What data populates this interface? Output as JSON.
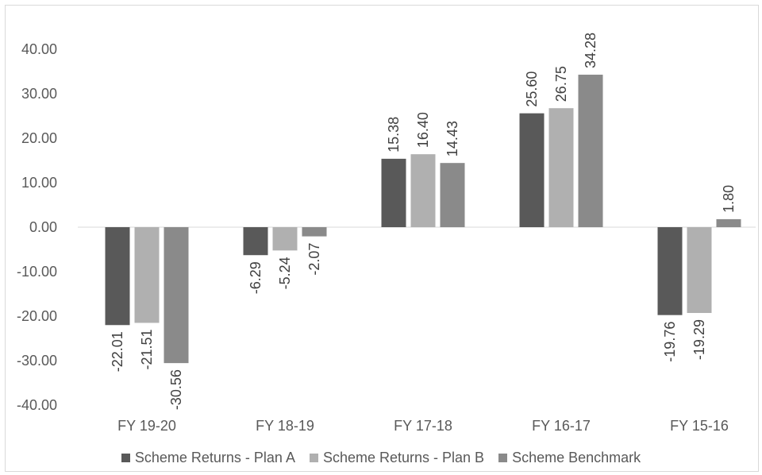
{
  "chart_data": {
    "type": "bar",
    "title": "",
    "xlabel": "",
    "ylabel": "",
    "categories": [
      "FY 19-20",
      "FY 18-19",
      "FY 17-18",
      "FY 16-17",
      "FY 15-16"
    ],
    "ylim": [
      -40,
      40
    ],
    "yticks": [
      40,
      30,
      20,
      10,
      0,
      -10,
      -20,
      -30,
      -40
    ],
    "ytick_labels": [
      "40.00",
      "30.00",
      "20.00",
      "10.00",
      "0.00",
      "-10.00",
      "-20.00",
      "-30.00",
      "-40.00"
    ],
    "grid": false,
    "legend_position": "bottom",
    "series": [
      {
        "name": "Scheme Returns - Plan A",
        "color": "#595959",
        "values": [
          -22.01,
          -6.29,
          15.38,
          25.6,
          -19.76
        ],
        "labels": [
          "-22.01",
          "-6.29",
          "15.38",
          "25.60",
          "-19.76"
        ]
      },
      {
        "name": "Scheme Returns  - Plan B",
        "color": "#b0b0b0",
        "values": [
          -21.51,
          -5.24,
          16.4,
          26.75,
          -19.29
        ],
        "labels": [
          "-21.51",
          "-5.24",
          "16.40",
          "26.75",
          "-19.29"
        ]
      },
      {
        "name": "Scheme Benchmark",
        "color": "#8a8a8a",
        "values": [
          -30.56,
          -2.07,
          14.43,
          34.28,
          1.8
        ],
        "labels": [
          "-30.56",
          "-2.07",
          "14.43",
          "34.28",
          "1.80"
        ]
      }
    ]
  }
}
